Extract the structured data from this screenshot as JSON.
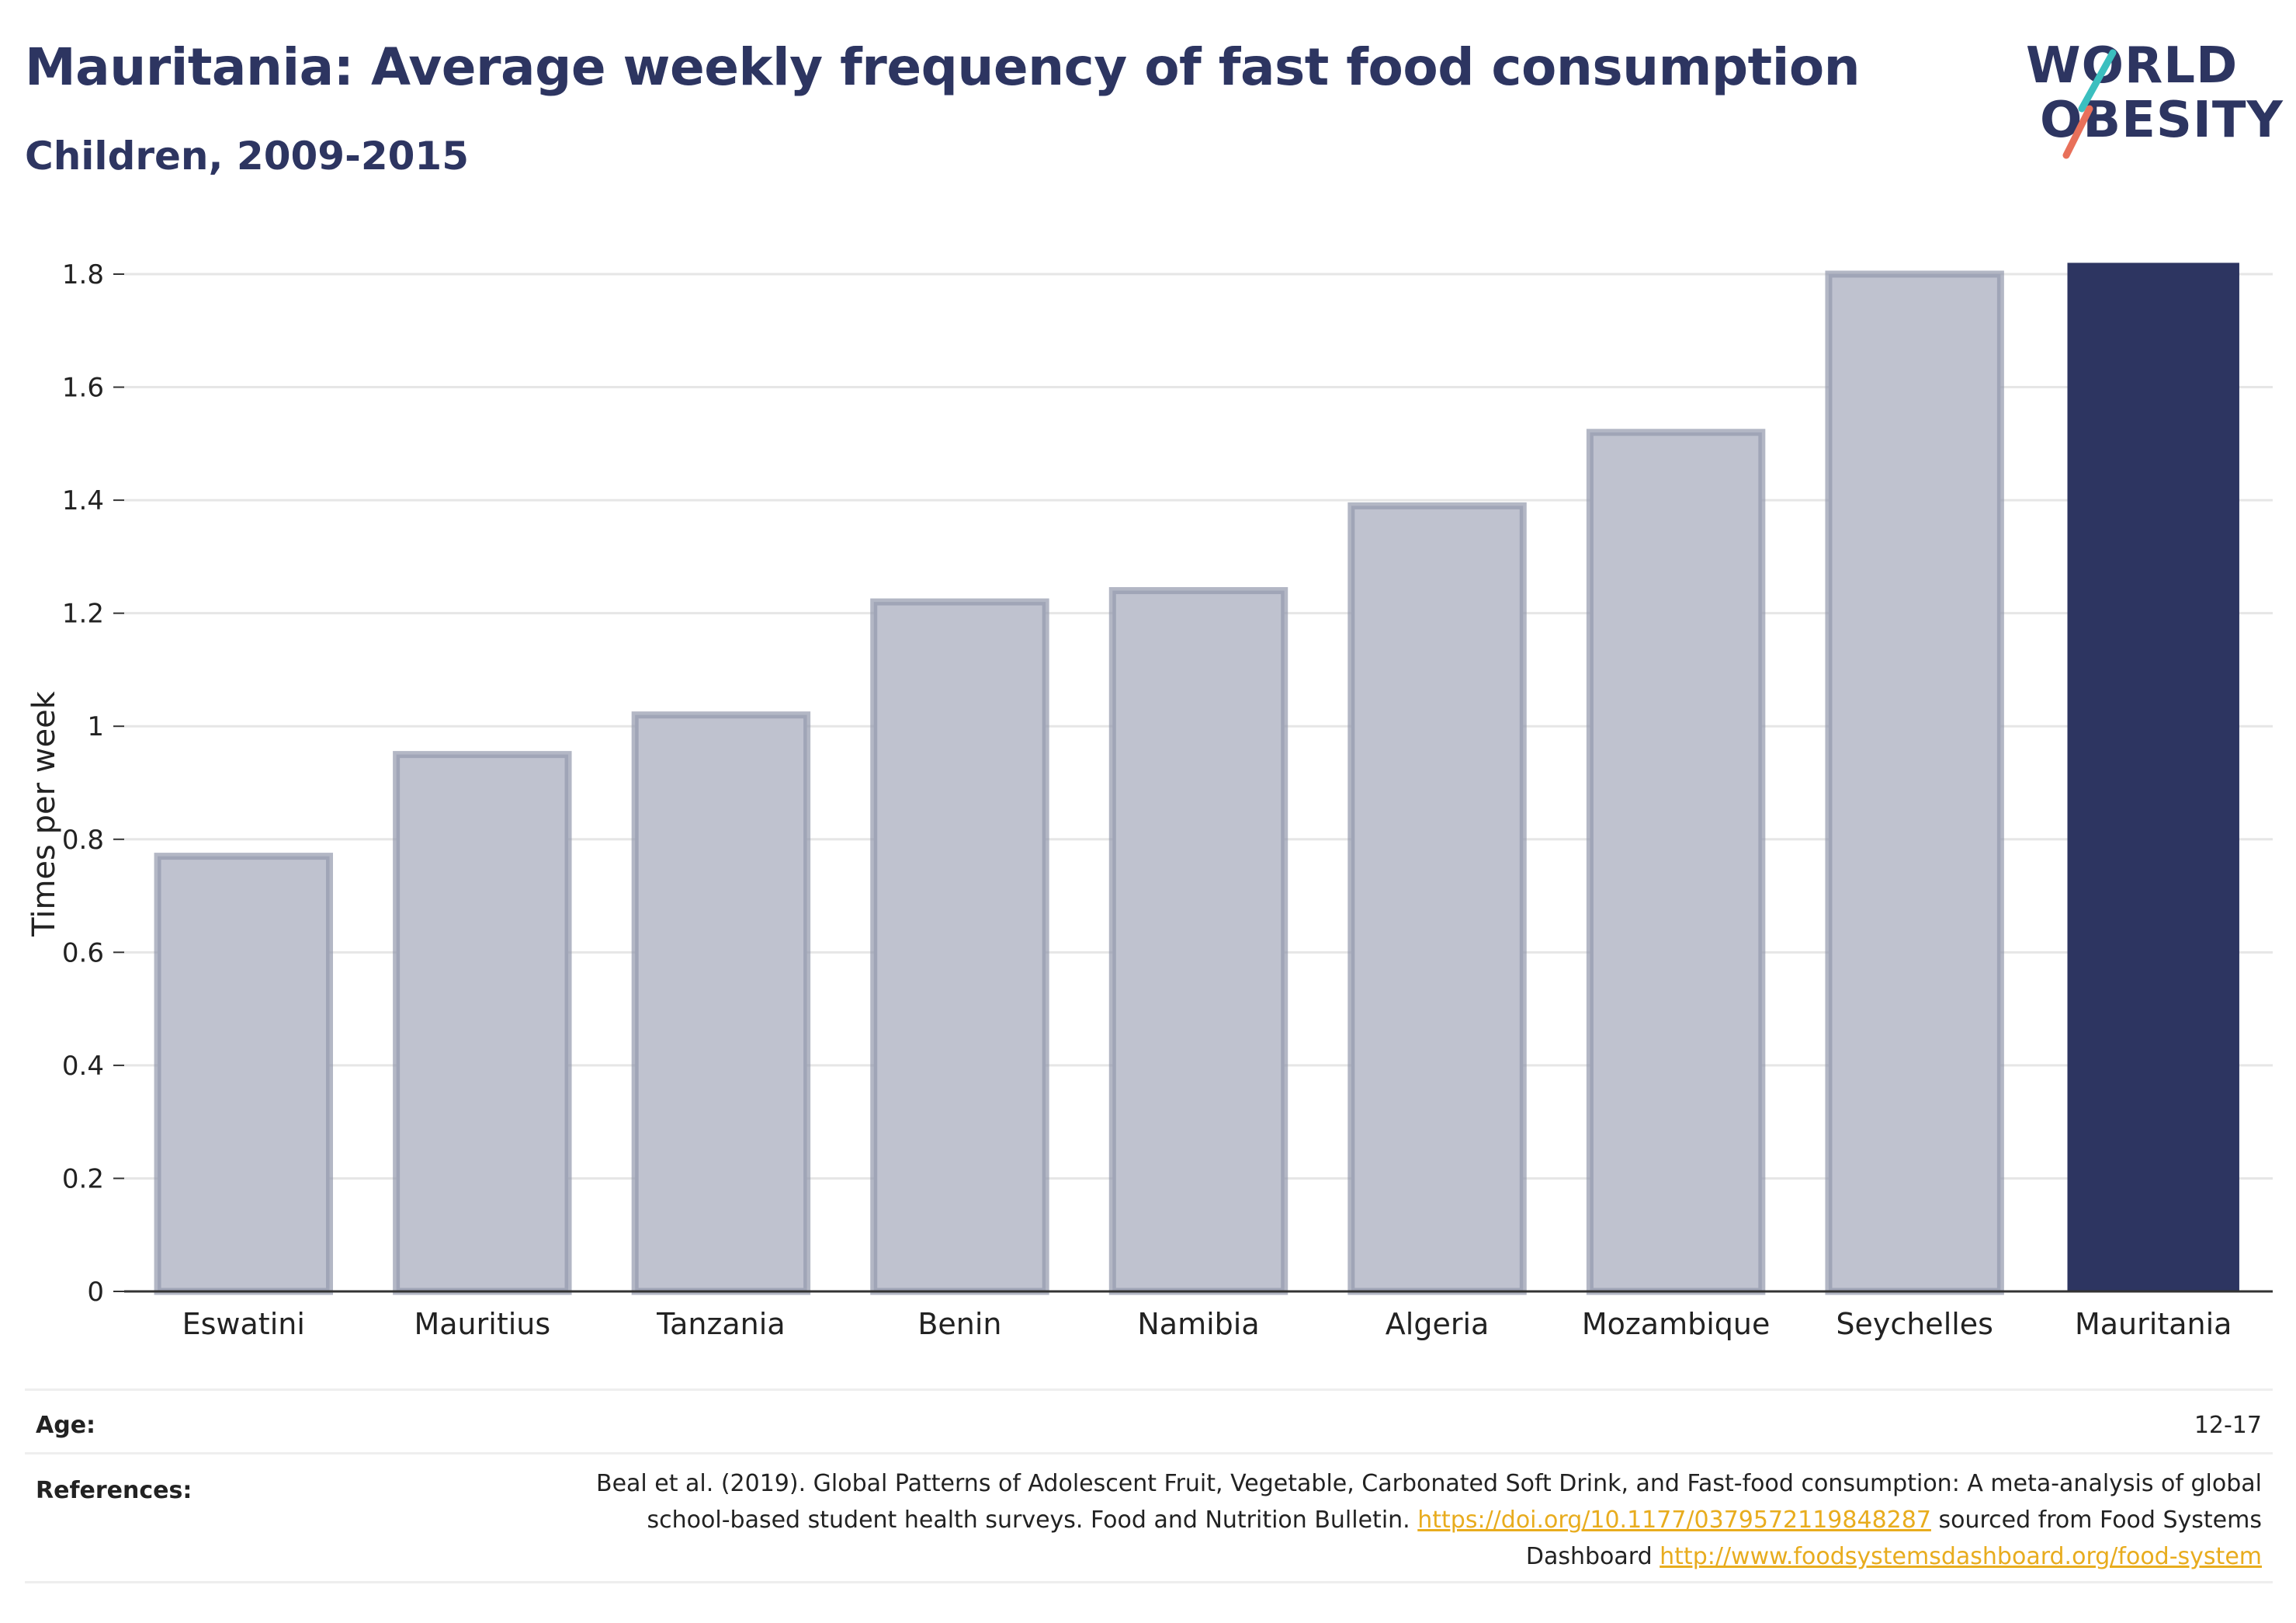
{
  "header": {
    "title": "Mauritania: Average weekly frequency of fast food consumption",
    "subtitle": "Children, 2009-2015"
  },
  "logo": {
    "line1": "WORLD",
    "line2": "OBESITY",
    "slash_colors": [
      "#3bbfbf",
      "#e8705a"
    ]
  },
  "colors": {
    "highlight": "#2d3561",
    "others_fill": "#bfc2cf",
    "others_stroke": "#9398ad",
    "grid": "#e6e6e6",
    "axis": "#333333"
  },
  "chart_data": {
    "type": "bar",
    "categories": [
      "Eswatini",
      "Mauritius",
      "Tanzania",
      "Benin",
      "Namibia",
      "Algeria",
      "Mozambique",
      "Seychelles",
      "Mauritania"
    ],
    "values": [
      0.77,
      0.95,
      1.02,
      1.22,
      1.24,
      1.39,
      1.52,
      1.8,
      1.82
    ],
    "highlight": "Mauritania",
    "ylabel": "Times per week",
    "xlabel": "",
    "ylim": [
      0,
      1.8
    ],
    "yticks": [
      0,
      0.2,
      0.4,
      0.6,
      0.8,
      1,
      1.2,
      1.4,
      1.6,
      1.8
    ],
    "ytick_labels": [
      "0",
      "0.2",
      "0.4",
      "0.6",
      "0.8",
      "1",
      "1.2",
      "1.4",
      "1.6",
      "1.8"
    ],
    "grid": true,
    "legend": "none"
  },
  "info": {
    "age_label": "Age:",
    "age_value": "12-17",
    "references_label": "References:",
    "references_text_1": "Beal et al. (2019). Global Patterns of Adolescent Fruit, Vegetable, Carbonated Soft Drink, and Fast-food consumption: A meta-analysis of global school-based student health surveys. Food and Nutrition Bulletin. ",
    "references_link_1": "https://doi.org/10.1177/0379572119848287",
    "references_text_2": " sourced from Food Systems Dashboard ",
    "references_link_2": "http://www.foodsystemsdashboard.org/food-system"
  }
}
